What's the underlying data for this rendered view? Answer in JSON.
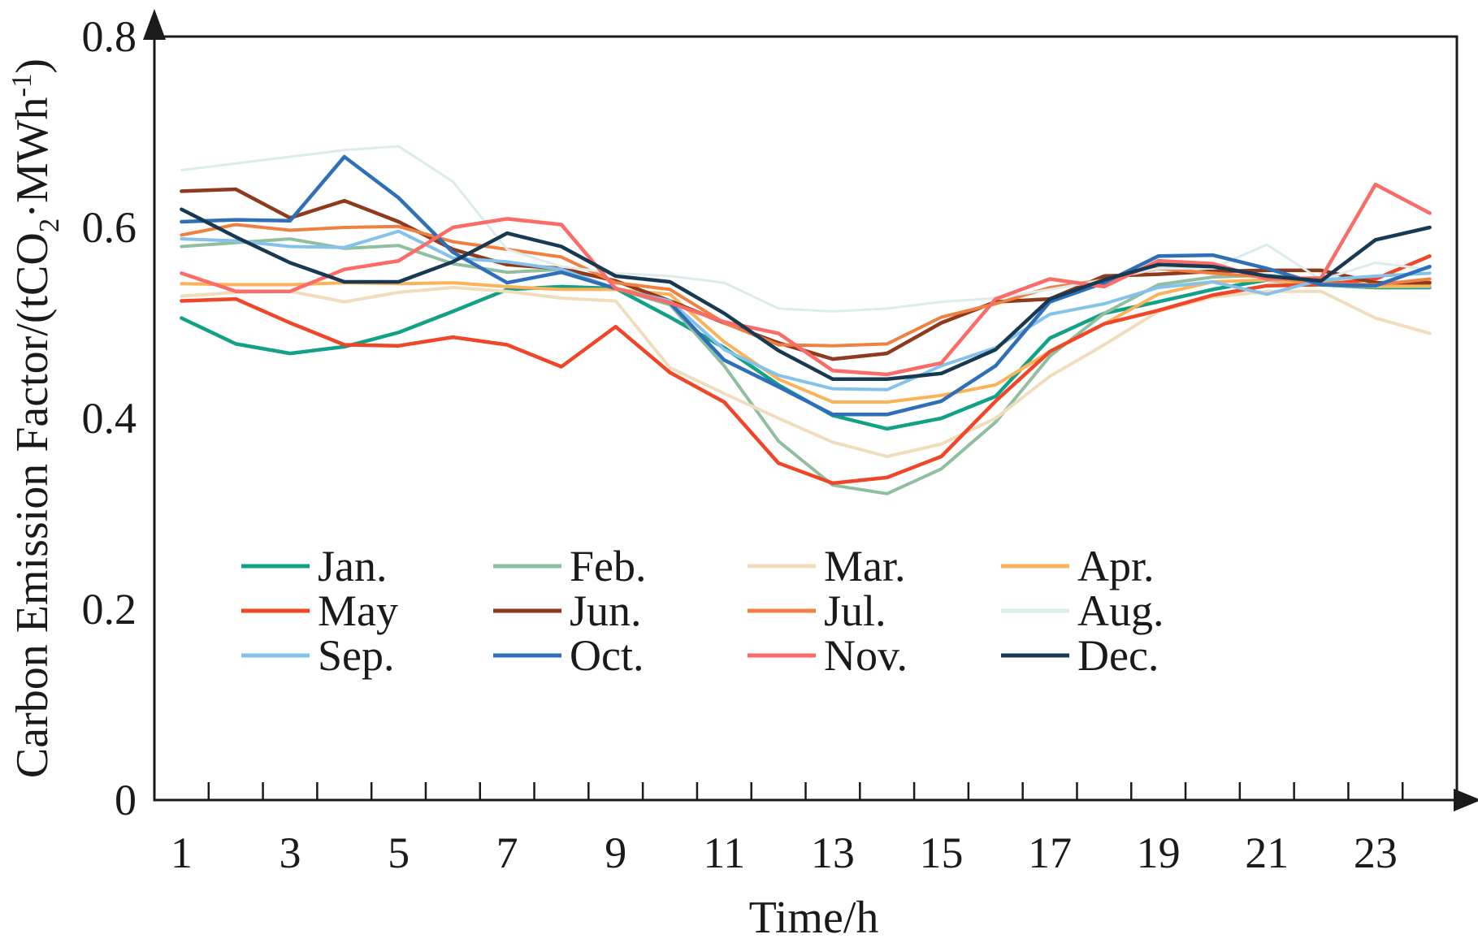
{
  "chart_data": {
    "type": "line",
    "title": "",
    "xlabel": "Time/h",
    "ylabel_parts": {
      "prefix": "Carbon Emission Factor/(tCO",
      "sub": "2",
      "mid": "·MWh",
      "sup": "-1",
      "suffix": ")"
    },
    "x": [
      1,
      2,
      3,
      4,
      5,
      6,
      7,
      8,
      9,
      10,
      11,
      12,
      13,
      14,
      15,
      16,
      17,
      18,
      19,
      20,
      21,
      22,
      23,
      24
    ],
    "x_tick_labels": [
      "1",
      "3",
      "5",
      "7",
      "9",
      "11",
      "13",
      "15",
      "17",
      "19",
      "21",
      "23"
    ],
    "x_label_hours": [
      1,
      3,
      5,
      7,
      9,
      11,
      13,
      15,
      17,
      19,
      21,
      23
    ],
    "y_ticks": [
      "0",
      "0.2",
      "0.4",
      "0.6",
      "0.8"
    ],
    "y_tick_values": [
      0,
      0.2,
      0.4,
      0.6,
      0.8
    ],
    "ylim": [
      0,
      0.8
    ],
    "grid": "off",
    "legend_position": "inside-lower-center",
    "axis_color": "#1a1a1a",
    "series": [
      {
        "name": "Jan",
        "label": "Jan.",
        "color": "#12a186",
        "width": 4.5,
        "values": [
          0.505,
          0.478,
          0.468,
          0.475,
          0.49,
          0.512,
          0.535,
          0.538,
          0.536,
          0.506,
          0.474,
          0.435,
          0.403,
          0.389,
          0.4,
          0.423,
          0.484,
          0.51,
          0.522,
          0.535,
          0.545,
          0.54,
          0.537,
          0.537
        ]
      },
      {
        "name": "Feb",
        "label": "Feb.",
        "color": "#8fbfa0",
        "width": 4,
        "values": [
          0.58,
          0.584,
          0.588,
          0.578,
          0.581,
          0.562,
          0.553,
          0.556,
          0.536,
          0.519,
          0.455,
          0.376,
          0.33,
          0.321,
          0.347,
          0.396,
          0.465,
          0.51,
          0.54,
          0.548,
          0.55,
          0.545,
          0.538,
          0.538
        ]
      },
      {
        "name": "Mar",
        "label": "Mar.",
        "color": "#f0ddbb",
        "width": 4,
        "values": [
          0.528,
          0.532,
          0.533,
          0.522,
          0.532,
          0.537,
          0.533,
          0.526,
          0.523,
          0.453,
          0.426,
          0.4,
          0.375,
          0.36,
          0.373,
          0.4,
          0.444,
          0.477,
          0.512,
          0.527,
          0.533,
          0.533,
          0.505,
          0.489
        ]
      },
      {
        "name": "Apr",
        "label": "Apr.",
        "color": "#fbb259",
        "width": 4,
        "values": [
          0.541,
          0.54,
          0.54,
          0.542,
          0.541,
          0.542,
          0.538,
          0.535,
          0.535,
          0.53,
          0.48,
          0.441,
          0.417,
          0.417,
          0.424,
          0.435,
          0.47,
          0.499,
          0.53,
          0.543,
          0.545,
          0.54,
          0.538,
          0.539
        ]
      },
      {
        "name": "May",
        "label": "May",
        "color": "#f04628",
        "width": 4.5,
        "values": [
          0.523,
          0.525,
          0.5,
          0.477,
          0.476,
          0.485,
          0.477,
          0.454,
          0.496,
          0.448,
          0.417,
          0.353,
          0.332,
          0.338,
          0.36,
          0.418,
          0.47,
          0.499,
          0.513,
          0.529,
          0.539,
          0.54,
          0.546,
          0.57
        ]
      },
      {
        "name": "Jun",
        "label": "Jun.",
        "color": "#8e3a1d",
        "width": 4.5,
        "values": [
          0.638,
          0.64,
          0.61,
          0.628,
          0.606,
          0.577,
          0.561,
          0.557,
          0.544,
          0.523,
          0.5,
          0.479,
          0.462,
          0.468,
          0.5,
          0.522,
          0.525,
          0.549,
          0.551,
          0.554,
          0.555,
          0.555,
          0.542,
          0.542
        ]
      },
      {
        "name": "Jul",
        "label": "Jul.",
        "color": "#f08042",
        "width": 4,
        "values": [
          0.592,
          0.603,
          0.597,
          0.6,
          0.601,
          0.585,
          0.577,
          0.569,
          0.542,
          0.535,
          0.5,
          0.477,
          0.476,
          0.478,
          0.506,
          0.52,
          0.537,
          0.545,
          0.557,
          0.552,
          0.548,
          0.541,
          0.54,
          0.546
        ]
      },
      {
        "name": "Aug",
        "label": "Aug.",
        "color": "#dcecea",
        "width": 3,
        "values": [
          0.66,
          0.667,
          0.674,
          0.681,
          0.685,
          0.648,
          0.577,
          0.559,
          0.552,
          0.549,
          0.542,
          0.515,
          0.512,
          0.515,
          0.522,
          0.526,
          0.535,
          0.545,
          0.557,
          0.557,
          0.582,
          0.545,
          0.563,
          0.556
        ]
      },
      {
        "name": "Sep",
        "label": "Sep.",
        "color": "#85c2ea",
        "width": 4,
        "values": [
          0.588,
          0.586,
          0.58,
          0.579,
          0.596,
          0.568,
          0.564,
          0.556,
          0.536,
          0.523,
          0.472,
          0.445,
          0.431,
          0.43,
          0.455,
          0.474,
          0.509,
          0.52,
          0.537,
          0.543,
          0.53,
          0.545,
          0.549,
          0.552
        ]
      },
      {
        "name": "Oct",
        "label": "Oct.",
        "color": "#2f6fb7",
        "width": 4.5,
        "values": [
          0.606,
          0.608,
          0.607,
          0.674,
          0.631,
          0.574,
          0.542,
          0.553,
          0.536,
          0.521,
          0.461,
          0.433,
          0.404,
          0.404,
          0.418,
          0.455,
          0.522,
          0.542,
          0.57,
          0.571,
          0.557,
          0.54,
          0.539,
          0.559
        ]
      },
      {
        "name": "Nov",
        "label": "Nov.",
        "color": "#f96c68",
        "width": 4.5,
        "values": [
          0.552,
          0.533,
          0.533,
          0.556,
          0.565,
          0.6,
          0.609,
          0.603,
          0.536,
          0.521,
          0.501,
          0.489,
          0.45,
          0.446,
          0.458,
          0.525,
          0.546,
          0.538,
          0.565,
          0.562,
          0.546,
          0.547,
          0.645,
          0.615
        ]
      },
      {
        "name": "Dec",
        "label": "Dec.",
        "color": "#173a52",
        "width": 4.5,
        "values": [
          0.619,
          0.59,
          0.563,
          0.543,
          0.543,
          0.564,
          0.594,
          0.58,
          0.549,
          0.543,
          0.51,
          0.471,
          0.441,
          0.441,
          0.447,
          0.472,
          0.525,
          0.545,
          0.561,
          0.559,
          0.549,
          0.544,
          0.587,
          0.6
        ]
      }
    ]
  }
}
